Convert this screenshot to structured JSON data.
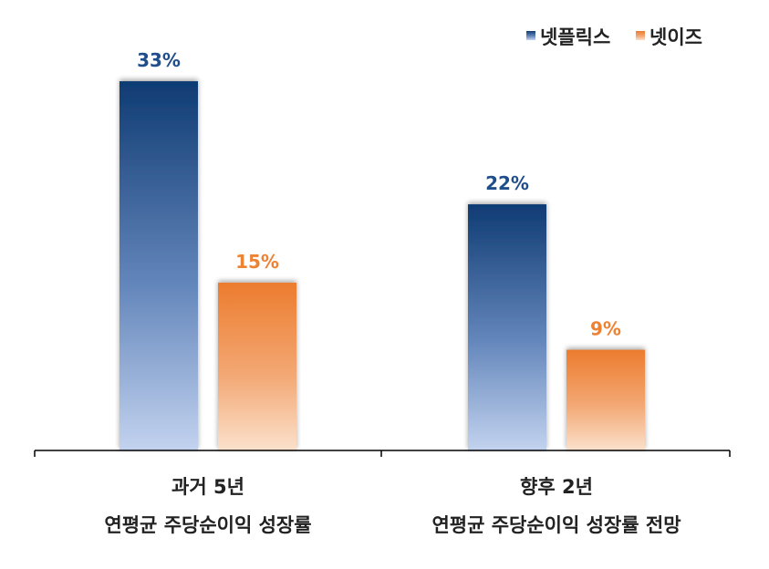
{
  "chart_data": {
    "type": "bar",
    "categories": [
      [
        "과거 5년",
        "연평균 주당순이익 성장률"
      ],
      [
        "향후 2년",
        "연평균 주당순이익 성장률 전망"
      ]
    ],
    "series": [
      {
        "name": "넷플릭스",
        "values": [
          33,
          22
        ],
        "labels": [
          "33%",
          "22%"
        ],
        "color": "#1f4e8a"
      },
      {
        "name": "넷이즈",
        "values": [
          15,
          9
        ],
        "labels": [
          "15%",
          "9%"
        ],
        "color": "#ee8233"
      }
    ],
    "ylim": [
      0,
      37
    ],
    "legend": "top-right",
    "grid": false
  }
}
